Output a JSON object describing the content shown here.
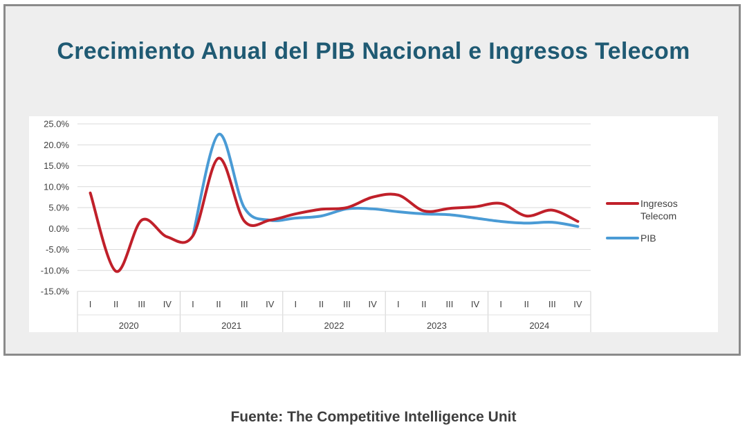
{
  "chart_data": {
    "type": "line",
    "title": "Crecimiento Anual del PIB Nacional e Ingresos Telecom",
    "xlabel": "",
    "ylabel": "",
    "categories": [
      "I",
      "II",
      "III",
      "IV",
      "I",
      "II",
      "III",
      "IV",
      "I",
      "II",
      "III",
      "IV",
      "I",
      "II",
      "III",
      "IV",
      "I",
      "II",
      "III",
      "IV"
    ],
    "groups": [
      "2020",
      "2021",
      "2022",
      "2023",
      "2024"
    ],
    "y_ticks": [
      "25.0%",
      "20.0%",
      "15.0%",
      "10.0%",
      "5.0%",
      "0.0%",
      "-5.0%",
      "-10.0%",
      "-15.0%"
    ],
    "ylim": [
      -15,
      25
    ],
    "grid": true,
    "legend": "right",
    "series": [
      {
        "name": "Ingresos Telecom",
        "color": "#c0202a",
        "values": [
          8.5,
          -10.2,
          2.0,
          -2.0,
          -1.7,
          16.8,
          1.8,
          2.0,
          3.5,
          4.6,
          5.0,
          7.5,
          8.0,
          4.2,
          4.8,
          5.2,
          6.0,
          3.0,
          4.4,
          1.7
        ]
      },
      {
        "name": "PIB",
        "color": "#4a9bd5",
        "values": [
          null,
          null,
          null,
          null,
          -1.7,
          22.5,
          5.0,
          2.0,
          2.5,
          3.0,
          4.7,
          4.7,
          4.0,
          3.5,
          3.3,
          2.5,
          1.7,
          1.3,
          1.5,
          0.5
        ]
      }
    ]
  },
  "source": "Fuente: The Competitive Intelligence Unit"
}
